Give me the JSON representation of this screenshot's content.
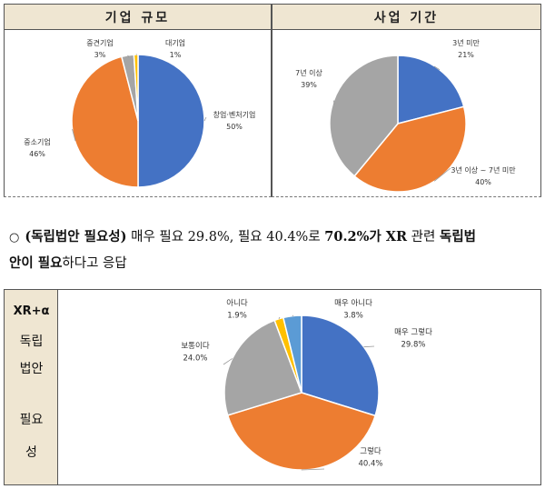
{
  "panels": {
    "size_title": "기업 규모",
    "period_title": "사업 기간"
  },
  "summary": {
    "bullet": "○",
    "part1": "(독립법안 필요성)",
    "part2": " 매우 필요 29.8%, 필요 40.4%로 ",
    "part3": "70.2%가 XR",
    "part4": " 관련 ",
    "part5": "독립법",
    "part6": "안이 필요",
    "part7": "하다고 응답"
  },
  "side_label": {
    "line1": "XR+α",
    "line2": "독립",
    "line3": "법안",
    "line4": "필요",
    "line5": "성"
  },
  "chart_data": [
    {
      "type": "pie",
      "title": "기업 규모",
      "slices": [
        {
          "label": "창업·벤처기업",
          "value": 50,
          "value_label": "50%",
          "color": "#4472c4"
        },
        {
          "label": "중소기업",
          "value": 46,
          "value_label": "46%",
          "color": "#ed7d31"
        },
        {
          "label": "중견기업",
          "value": 3,
          "value_label": "3%",
          "color": "#a5a5a5"
        },
        {
          "label": "대기업",
          "value": 1,
          "value_label": "1%",
          "color": "#ffc000"
        }
      ]
    },
    {
      "type": "pie",
      "title": "사업 기간",
      "slices": [
        {
          "label": "3년 미만",
          "value": 21,
          "value_label": "21%",
          "color": "#4472c4"
        },
        {
          "label": "3년 이상 ~ 7년 미만",
          "value": 40,
          "value_label": "40%",
          "color": "#ed7d31"
        },
        {
          "label": "7년 이상",
          "value": 39,
          "value_label": "39%",
          "color": "#a5a5a5"
        }
      ]
    },
    {
      "type": "pie",
      "title": "",
      "slices": [
        {
          "label": "매우 그렇다",
          "value": 29.8,
          "value_label": "29.8%",
          "color": "#4472c4"
        },
        {
          "label": "그렇다",
          "value": 40.4,
          "value_label": "40.4%",
          "color": "#ed7d31"
        },
        {
          "label": "보통이다",
          "value": 24.0,
          "value_label": "24.0%",
          "color": "#a5a5a5"
        },
        {
          "label": "아니다",
          "value": 1.9,
          "value_label": "1.9%",
          "color": "#ffc000"
        },
        {
          "label": "매우 아니다",
          "value": 3.8,
          "value_label": "3.8%",
          "color": "#5b9bd5"
        }
      ]
    }
  ]
}
